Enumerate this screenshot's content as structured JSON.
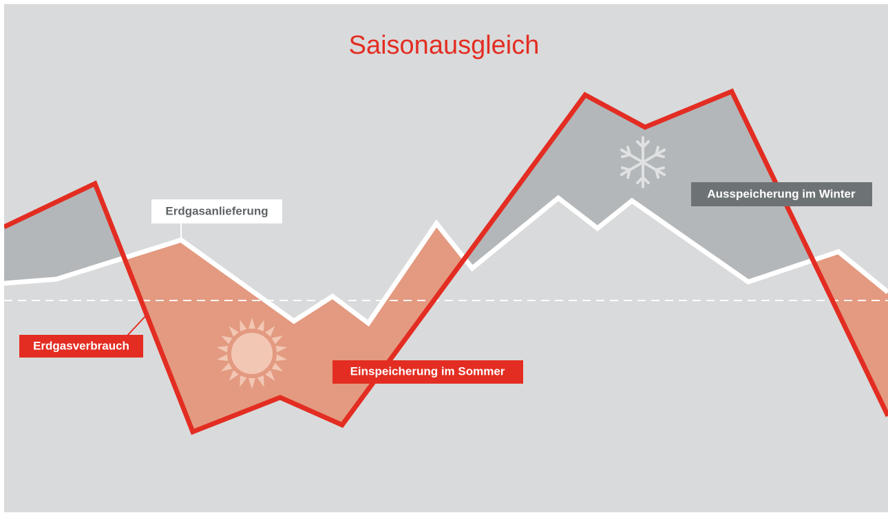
{
  "title": "Saisonausgleich",
  "labels": {
    "supply": "Erdgasanlieferung",
    "consumption": "Erdgasverbrauch",
    "injection": "Einspeicherung im Sommer",
    "withdrawal": "Ausspeicherung im Winter"
  }
}
